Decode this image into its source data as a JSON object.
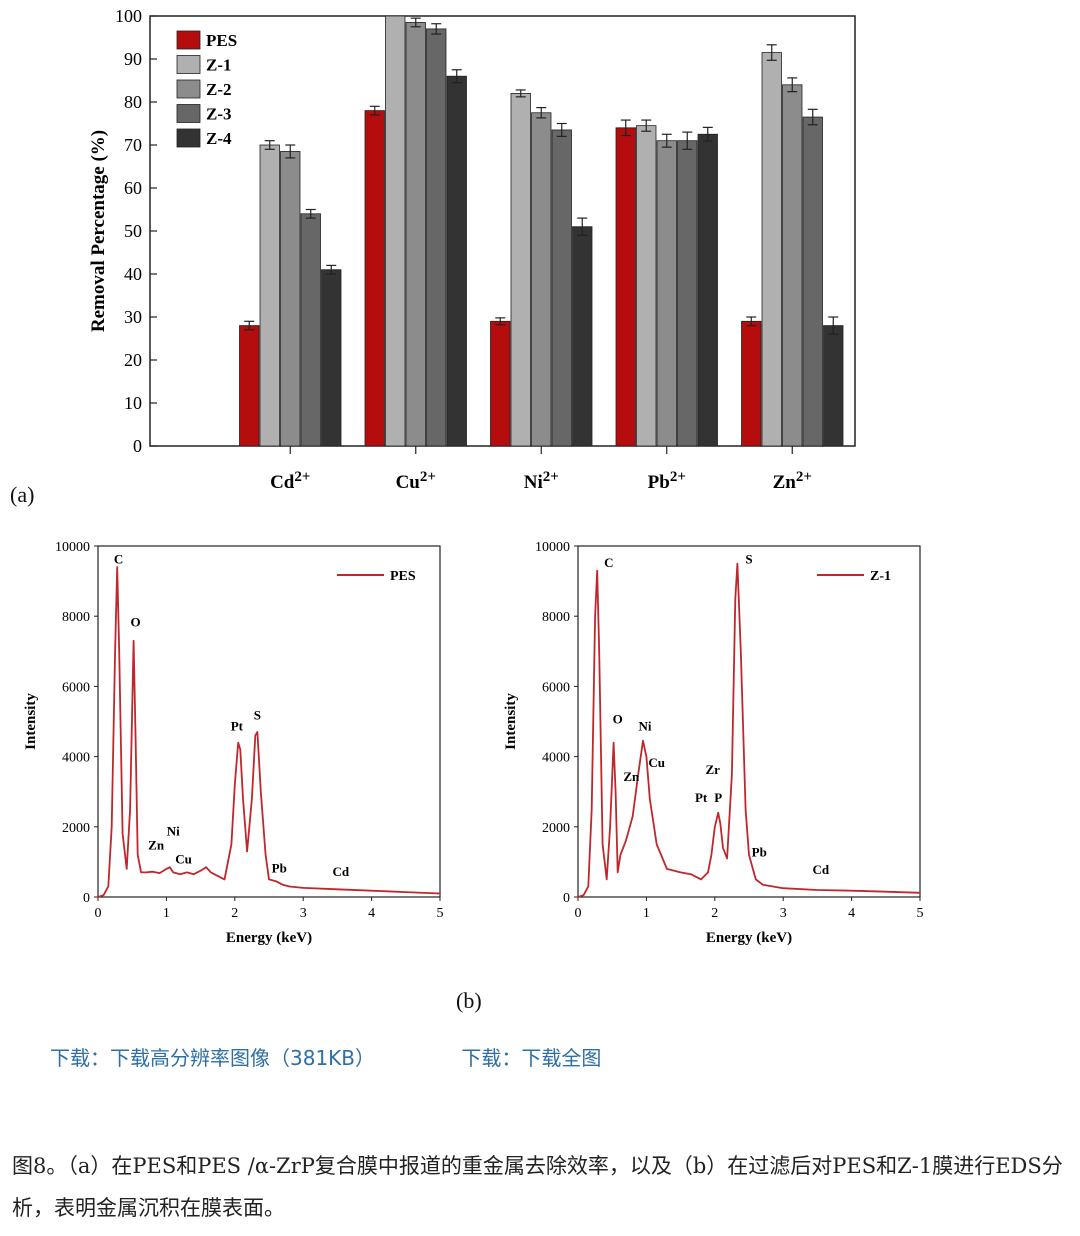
{
  "chart_data": [
    {
      "type": "bar",
      "ylabel": "Removal Percentage (%)",
      "xlabel": "",
      "ylim": [
        0,
        100
      ],
      "yticks": [
        0,
        10,
        20,
        30,
        40,
        50,
        60,
        70,
        80,
        90,
        100
      ],
      "categories": [
        {
          "base": "Cd",
          "sup": "2+"
        },
        {
          "base": "Cu",
          "sup": "2+"
        },
        {
          "base": "Ni",
          "sup": "2+"
        },
        {
          "base": "Pb",
          "sup": "2+"
        },
        {
          "base": "Zn",
          "sup": "2+"
        }
      ],
      "legend_position": "top-left",
      "series": [
        {
          "name": "PES",
          "color": "#b50d0d",
          "values": [
            28,
            78,
            29,
            74,
            29
          ],
          "errors": [
            1.0,
            1.0,
            0.8,
            1.8,
            1.0
          ]
        },
        {
          "name": "Z-1",
          "color": "#b0b0b0",
          "values": [
            70,
            100,
            82,
            74.5,
            91.5
          ],
          "errors": [
            1.0,
            0,
            0.8,
            1.3,
            1.8
          ]
        },
        {
          "name": "Z-2",
          "color": "#8c8c8c",
          "values": [
            68.5,
            98.5,
            77.5,
            71,
            84
          ],
          "errors": [
            1.5,
            1.0,
            1.2,
            1.5,
            1.6
          ]
        },
        {
          "name": "Z-3",
          "color": "#676767",
          "values": [
            54,
            97,
            73.5,
            71,
            76.5
          ],
          "errors": [
            1.0,
            1.2,
            1.5,
            2.0,
            1.8
          ]
        },
        {
          "name": "Z-4",
          "color": "#333333",
          "values": [
            41,
            86,
            51,
            72.5,
            28
          ],
          "errors": [
            1.0,
            1.5,
            2.0,
            1.6,
            2.0
          ]
        }
      ]
    },
    {
      "type": "line",
      "xlabel": "Energy (keV)",
      "ylabel": "Intensity",
      "xlim": [
        0,
        5
      ],
      "ylim": [
        0,
        10000
      ],
      "xticks": [
        0,
        1,
        2,
        3,
        4,
        5
      ],
      "yticks": [
        0,
        2000,
        4000,
        6000,
        8000,
        10000
      ],
      "legend_position": "top-right",
      "series": [
        {
          "name": "PES",
          "color": "#c0272d",
          "x": [
            0,
            0.08,
            0.15,
            0.2,
            0.25,
            0.28,
            0.31,
            0.36,
            0.42,
            0.47,
            0.52,
            0.55,
            0.58,
            0.63,
            0.7,
            0.8,
            0.9,
            1.0,
            1.05,
            1.1,
            1.2,
            1.3,
            1.4,
            1.5,
            1.58,
            1.65,
            1.75,
            1.85,
            1.95,
            2.0,
            2.05,
            2.08,
            2.12,
            2.18,
            2.25,
            2.3,
            2.33,
            2.38,
            2.45,
            2.5,
            2.6,
            2.7,
            2.8,
            3.0,
            3.5,
            4.0,
            4.5,
            5.0
          ],
          "y": [
            0,
            50,
            300,
            2000,
            7000,
            9400,
            7000,
            1800,
            800,
            2500,
            7300,
            4500,
            1200,
            700,
            700,
            720,
            680,
            800,
            850,
            700,
            650,
            700,
            650,
            750,
            850,
            700,
            600,
            500,
            1500,
            3200,
            4400,
            4200,
            2800,
            1300,
            2800,
            4600,
            4700,
            3000,
            1200,
            500,
            450,
            350,
            300,
            260,
            220,
            180,
            140,
            100
          ]
        },
        {
          "name": "Z-1",
          "color": "#c0272d",
          "x": [
            0,
            0.08,
            0.15,
            0.2,
            0.25,
            0.28,
            0.31,
            0.36,
            0.42,
            0.47,
            0.52,
            0.55,
            0.58,
            0.62,
            0.7,
            0.8,
            0.88,
            0.95,
            1.0,
            1.05,
            1.15,
            1.3,
            1.5,
            1.65,
            1.8,
            1.9,
            1.95,
            2.0,
            2.05,
            2.08,
            2.12,
            2.18,
            2.25,
            2.3,
            2.33,
            2.38,
            2.45,
            2.5,
            2.6,
            2.7,
            3.0,
            3.5,
            4.0,
            4.5,
            5.0
          ],
          "y": [
            0,
            50,
            300,
            2500,
            8000,
            9300,
            7000,
            1500,
            500,
            2000,
            4400,
            3000,
            700,
            1200,
            1600,
            2300,
            3500,
            4450,
            4000,
            2800,
            1500,
            800,
            700,
            650,
            500,
            700,
            1200,
            2000,
            2400,
            2100,
            1400,
            1100,
            3500,
            8500,
            9500,
            7000,
            2500,
            1200,
            500,
            350,
            250,
            200,
            180,
            150,
            120
          ]
        }
      ]
    }
  ],
  "bar_panel_label": "(a)",
  "eds": {
    "left": {
      "legend": "PES",
      "peaks": [
        {
          "label": "C",
          "x": 0.3,
          "y": 9500
        },
        {
          "label": "O",
          "x": 0.55,
          "y": 7700
        },
        {
          "label": "Zn",
          "x": 0.85,
          "y": 1350
        },
        {
          "label": "Ni",
          "x": 1.1,
          "y": 1750
        },
        {
          "label": "Cu",
          "x": 1.25,
          "y": 950
        },
        {
          "label": "Pt",
          "x": 2.03,
          "y": 4750
        },
        {
          "label": "S",
          "x": 2.33,
          "y": 5050
        },
        {
          "label": "Pb",
          "x": 2.65,
          "y": 700
        },
        {
          "label": "Cd",
          "x": 3.55,
          "y": 600
        }
      ]
    },
    "right": {
      "legend": "Z-1",
      "peaks": [
        {
          "label": "C",
          "x": 0.45,
          "y": 9400
        },
        {
          "label": "S",
          "x": 2.5,
          "y": 9500
        },
        {
          "label": "O",
          "x": 0.58,
          "y": 4950
        },
        {
          "label": "Ni",
          "x": 0.98,
          "y": 4750
        },
        {
          "label": "Cu",
          "x": 1.15,
          "y": 3700
        },
        {
          "label": "Zn",
          "x": 0.78,
          "y": 3300
        },
        {
          "label": "Zr",
          "x": 1.97,
          "y": 3500
        },
        {
          "label": "Pt",
          "x": 1.8,
          "y": 2700
        },
        {
          "label": "P",
          "x": 2.05,
          "y": 2700
        },
        {
          "label": "Pb",
          "x": 2.65,
          "y": 1150
        },
        {
          "label": "Cd",
          "x": 3.55,
          "y": 650
        }
      ]
    }
  },
  "eds_panel_label": "(b)",
  "links": {
    "download_hires": "下载：下载高分辨率图像（381KB）",
    "download_full": "下载：下载全图"
  },
  "caption": "图8。（a）在PES和PES /α-ZrP复合膜中报道的重金属去除效率，以及（b）在过滤后对PES和Z-1膜进行EDS分析，表明金属沉积在膜表面。"
}
